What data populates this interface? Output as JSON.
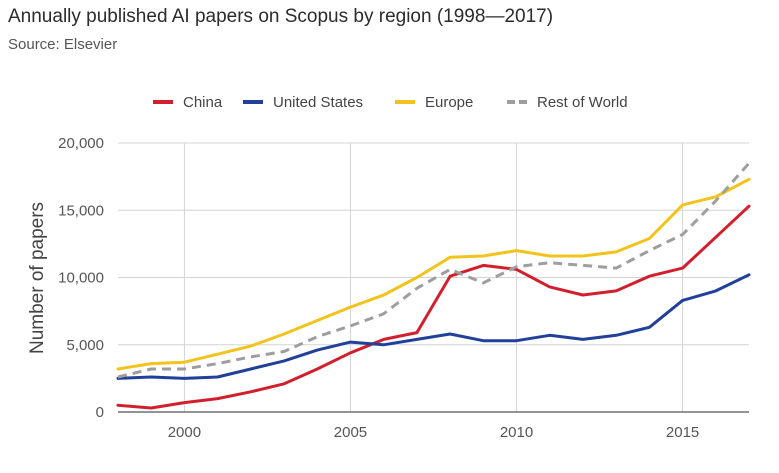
{
  "header": {
    "title": "Annually published AI papers on Scopus by region (1998—2017)",
    "subtitle": "Source: Elsevier"
  },
  "chart_data": {
    "type": "line",
    "title": "Annually published AI papers on Scopus by region (1998—2017)",
    "subtitle": "Source: Elsevier",
    "xlabel": "",
    "ylabel": "Number of papers",
    "xlim": [
      1998,
      2017
    ],
    "ylim": [
      0,
      20000
    ],
    "x_ticks": [
      2000,
      2005,
      2010,
      2015
    ],
    "x_tick_labels": [
      "2000",
      "2005",
      "2010",
      "2015"
    ],
    "y_ticks": [
      0,
      5000,
      10000,
      15000,
      20000
    ],
    "y_tick_labels": [
      "0",
      "5,000",
      "10,000",
      "15,000",
      "20,000"
    ],
    "grid": true,
    "legend_position": "top",
    "x": [
      1998,
      1999,
      2000,
      2001,
      2002,
      2003,
      2004,
      2005,
      2006,
      2007,
      2008,
      2009,
      2010,
      2011,
      2012,
      2013,
      2014,
      2015,
      2016,
      2017
    ],
    "series": [
      {
        "name": "China",
        "color": "#d0202e",
        "dash": "solid",
        "values": [
          500,
          300,
          700,
          1000,
          1500,
          2100,
          3200,
          4400,
          5400,
          5900,
          10100,
          10900,
          10600,
          9300,
          8700,
          9000,
          10100,
          10700,
          13000,
          15300
        ]
      },
      {
        "name": "United States",
        "color": "#21409a",
        "dash": "solid",
        "values": [
          2500,
          2600,
          2500,
          2600,
          3200,
          3800,
          4600,
          5200,
          5000,
          5400,
          5800,
          5300,
          5300,
          5700,
          5400,
          5700,
          6300,
          8300,
          9000,
          10200
        ]
      },
      {
        "name": "Europe",
        "color": "#f2c31c",
        "dash": "solid",
        "values": [
          3200,
          3600,
          3700,
          4300,
          4900,
          5800,
          6800,
          7800,
          8700,
          10000,
          11500,
          11600,
          12000,
          11600,
          11600,
          11900,
          12900,
          15400,
          16000,
          17300
        ]
      },
      {
        "name": "Rest of World",
        "color": "#9e9e9e",
        "dash": "dashed",
        "values": [
          2600,
          3200,
          3200,
          3600,
          4100,
          4500,
          5600,
          6400,
          7300,
          9200,
          10600,
          9600,
          10800,
          11100,
          10900,
          10700,
          12000,
          13200,
          15700,
          18500
        ]
      }
    ]
  }
}
